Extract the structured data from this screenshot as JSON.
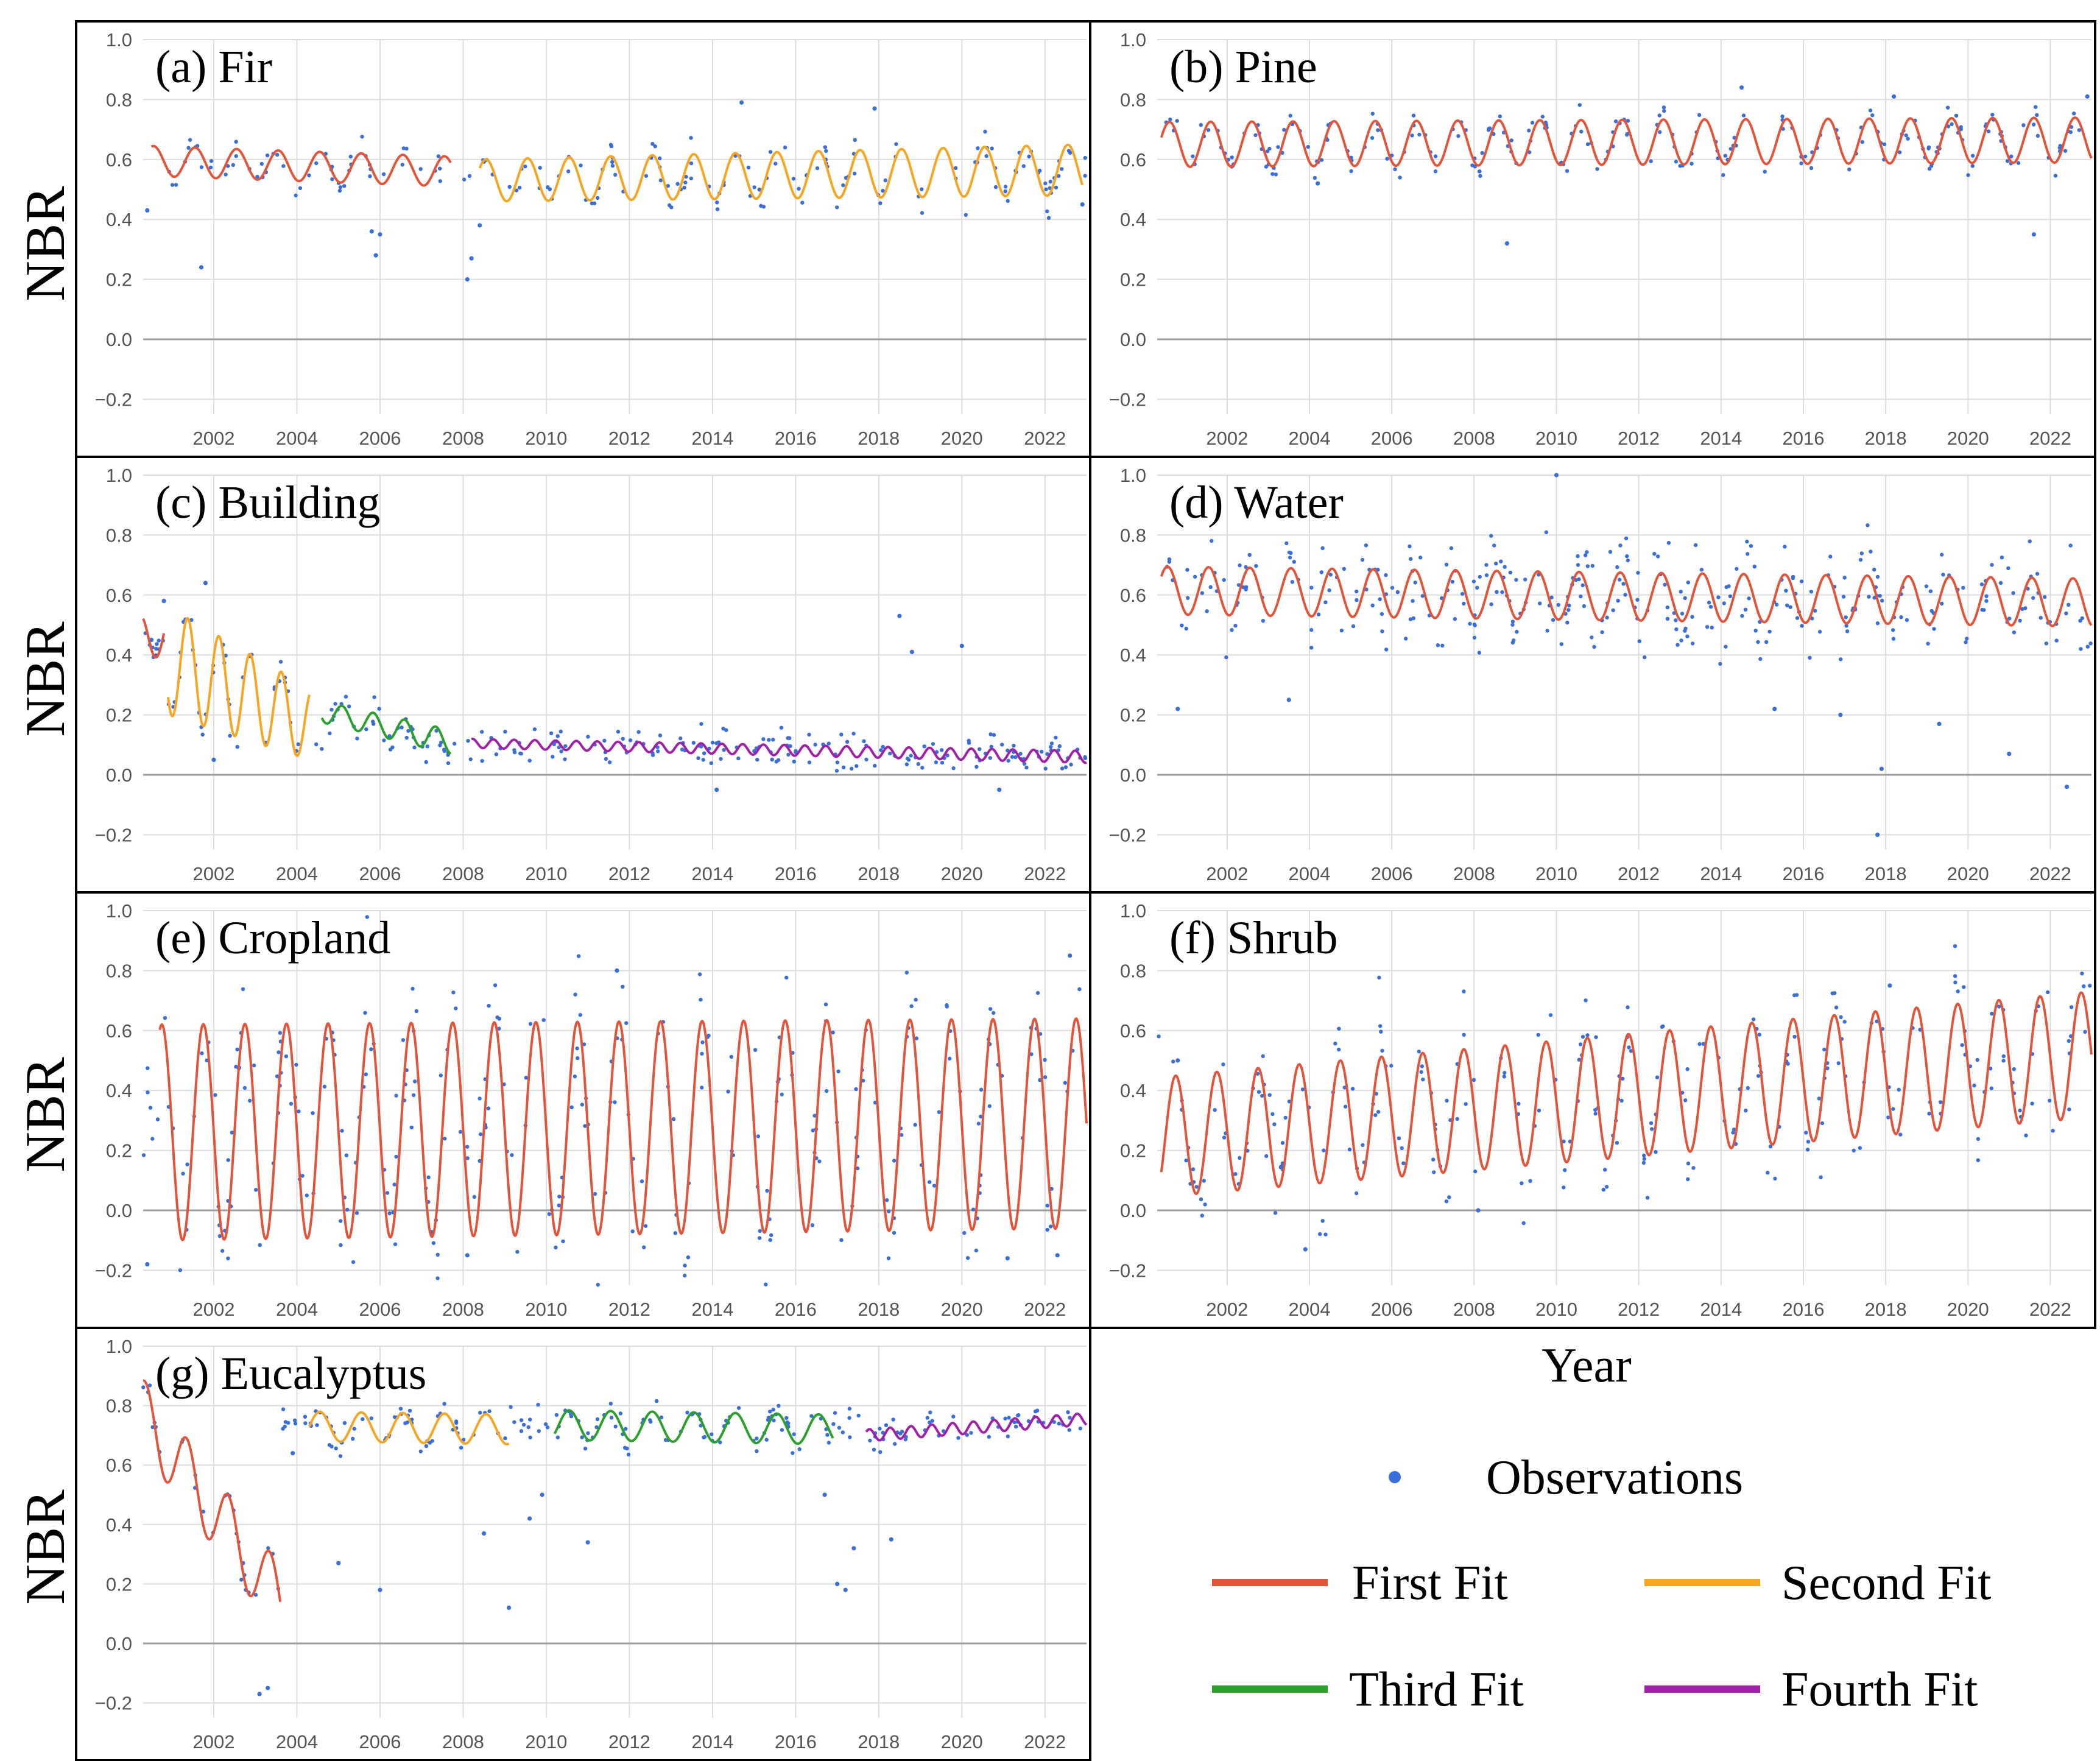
{
  "figure": {
    "xlabel": "Year",
    "ylabel": "NBR",
    "colors": {
      "observations": "#3b6fd8",
      "first_fit": "#e3553a",
      "second_fit": "#f6a623",
      "third_fit": "#2ca02c",
      "fourth_fit": "#a020a8",
      "zero_line": "#9e9e9e",
      "grid": "#dcdcdc"
    }
  },
  "legend": {
    "observations": "Observations",
    "first_fit": "First Fit",
    "second_fit": "Second Fit",
    "third_fit": "Third Fit",
    "fourth_fit": "Fourth Fit"
  },
  "chart_data": [
    {
      "id": "a",
      "type": "line",
      "title": "(a) Fir",
      "ylabel": "NBR",
      "xlabel": "Year",
      "xlim": [
        2000.3,
        2023.0
      ],
      "ylim": [
        -0.25,
        1.0
      ],
      "xticks": [
        "2002",
        "2004",
        "2006",
        "2008",
        "2010",
        "2012",
        "2014",
        "2016",
        "2018",
        "2020",
        "2022"
      ],
      "yticks": [
        "1.0",
        "0.8",
        "0.6",
        "0.4",
        "0.2",
        "0.0",
        "−0.2"
      ],
      "series": [
        {
          "name": "First Fit",
          "kind": "First Fit",
          "x_start": 2000.5,
          "x_end": 2007.7,
          "mean_start": 0.595,
          "mean_end": 0.56,
          "amp_start": 0.05,
          "amp_end": 0.05,
          "phase": 0.3
        },
        {
          "name": "Second Fit",
          "kind": "Second Fit",
          "x_start": 2008.4,
          "x_end": 2022.9,
          "mean_start": 0.53,
          "mean_end": 0.565,
          "amp_start": 0.07,
          "amp_end": 0.085,
          "phase": 0.3
        }
      ],
      "observations": {
        "mean": 0.57,
        "spread": 0.06,
        "count": 190,
        "outliers": [
          [
            2000.4,
            0.43
          ],
          [
            2001.7,
            0.24
          ],
          [
            2005.8,
            0.36
          ],
          [
            2005.9,
            0.28
          ],
          [
            2006.0,
            0.35
          ],
          [
            2008.1,
            0.2
          ],
          [
            2008.2,
            0.27
          ],
          [
            2008.4,
            0.38
          ],
          [
            2014.7,
            0.79
          ],
          [
            2017.9,
            0.77
          ],
          [
            2022.9,
            0.45
          ]
        ]
      }
    },
    {
      "id": "b",
      "type": "line",
      "title": "(b) Pine",
      "ylabel": "",
      "xlabel": "Year",
      "xlim": [
        2000.3,
        2023.0
      ],
      "ylim": [
        -0.25,
        1.0
      ],
      "xticks": [
        "2002",
        "2004",
        "2006",
        "2008",
        "2010",
        "2012",
        "2014",
        "2016",
        "2018",
        "2020",
        "2022"
      ],
      "yticks": [
        "1.0",
        "0.8",
        "0.6",
        "0.4",
        "0.2",
        "0.0",
        "−0.2"
      ],
      "series": [
        {
          "name": "First Fit",
          "kind": "First Fit",
          "x_start": 2000.4,
          "x_end": 2023.0,
          "mean_start": 0.65,
          "mean_end": 0.665,
          "amp_start": 0.075,
          "amp_end": 0.075,
          "phase": 0.35
        }
      ],
      "observations": {
        "mean": 0.66,
        "spread": 0.05,
        "count": 230,
        "outliers": [
          [
            2004.2,
            0.52
          ],
          [
            2008.8,
            0.32
          ],
          [
            2014.5,
            0.84
          ],
          [
            2018.2,
            0.81
          ],
          [
            2021.6,
            0.35
          ],
          [
            2022.9,
            0.81
          ]
        ]
      }
    },
    {
      "id": "c",
      "type": "line",
      "title": "(c) Building",
      "ylabel": "NBR",
      "xlabel": "Year",
      "xlim": [
        2000.3,
        2023.0
      ],
      "ylim": [
        -0.25,
        1.0
      ],
      "xticks": [
        "2002",
        "2004",
        "2006",
        "2008",
        "2010",
        "2012",
        "2014",
        "2016",
        "2018",
        "2020",
        "2022"
      ],
      "yticks": [
        "1.0",
        "0.8",
        "0.6",
        "0.4",
        "0.2",
        "0.0",
        "−0.2"
      ],
      "series": [
        {
          "name": "First Fit",
          "kind": "First Fit",
          "x_start": 2000.3,
          "x_end": 2000.8,
          "mean_start": 0.35,
          "mean_end": 0.52,
          "amp_start": 0.18,
          "amp_end": 0.05,
          "phase": 0.0,
          "period": 1.0
        },
        {
          "name": "Second Fit",
          "kind": "Second Fit",
          "x_start": 2000.9,
          "x_end": 2004.3,
          "mean_start": 0.38,
          "mean_end": 0.17,
          "amp_start": 0.18,
          "amp_end": 0.12,
          "phase": 0.25,
          "period": 0.75
        },
        {
          "name": "Third Fit",
          "kind": "Third Fit",
          "x_start": 2004.6,
          "x_end": 2007.7,
          "mean_start": 0.21,
          "mean_end": 0.11,
          "amp_start": 0.035,
          "amp_end": 0.04,
          "phase": 0.2,
          "period": 0.75
        },
        {
          "name": "Fourth Fit",
          "kind": "Fourth Fit",
          "x_start": 2008.2,
          "x_end": 2023.0,
          "mean_start": 0.105,
          "mean_end": 0.06,
          "amp_start": 0.015,
          "amp_end": 0.02,
          "phase": 0.2,
          "period": 0.5
        }
      ],
      "observations": {
        "mean": 0.1,
        "spread": 0.06,
        "count": 260,
        "outliers": [
          [
            2000.5,
            0.45
          ],
          [
            2000.8,
            0.58
          ],
          [
            2001.8,
            0.64
          ],
          [
            2002.0,
            0.05
          ],
          [
            2018.5,
            0.53
          ],
          [
            2018.8,
            0.41
          ],
          [
            2020.0,
            0.43
          ],
          [
            2014.1,
            -0.05
          ],
          [
            2020.9,
            -0.05
          ]
        ]
      }
    },
    {
      "id": "d",
      "type": "line",
      "title": "(d) Water",
      "ylabel": "",
      "xlabel": "Year",
      "xlim": [
        2000.3,
        2023.0
      ],
      "ylim": [
        -0.25,
        1.0
      ],
      "xticks": [
        "2002",
        "2004",
        "2006",
        "2008",
        "2010",
        "2012",
        "2014",
        "2016",
        "2018",
        "2020",
        "2022"
      ],
      "yticks": [
        "1.0",
        "0.8",
        "0.6",
        "0.4",
        "0.2",
        "0.0",
        "−0.2"
      ],
      "series": [
        {
          "name": "First Fit",
          "kind": "First Fit",
          "x_start": 2000.4,
          "x_end": 2023.0,
          "mean_start": 0.615,
          "mean_end": 0.575,
          "amp_start": 0.08,
          "amp_end": 0.08,
          "phase": 0.3
        }
      ],
      "observations": {
        "mean": 0.58,
        "spread": 0.16,
        "count": 330,
        "outliers": [
          [
            2000.8,
            0.22
          ],
          [
            2003.5,
            0.25
          ],
          [
            2010.0,
            1.0
          ],
          [
            2017.9,
            0.02
          ],
          [
            2017.8,
            -0.2
          ],
          [
            2022.4,
            -0.04
          ],
          [
            2019.3,
            0.17
          ],
          [
            2021.0,
            0.07
          ],
          [
            2016.9,
            0.2
          ],
          [
            2015.3,
            0.22
          ]
        ]
      }
    },
    {
      "id": "e",
      "type": "line",
      "title": "(e) Cropland",
      "ylabel": "NBR",
      "xlabel": "Year",
      "xlim": [
        2000.3,
        2023.0
      ],
      "ylim": [
        -0.25,
        1.0
      ],
      "xticks": [
        "2002",
        "2004",
        "2006",
        "2008",
        "2010",
        "2012",
        "2014",
        "2016",
        "2018",
        "2020",
        "2022"
      ],
      "yticks": [
        "1.0",
        "0.8",
        "0.6",
        "0.4",
        "0.2",
        "0.0",
        "−0.2"
      ],
      "series": [
        {
          "name": "First Fit",
          "kind": "First Fit",
          "x_start": 2000.7,
          "x_end": 2023.0,
          "mean_start": 0.26,
          "mean_end": 0.29,
          "amp_start": 0.36,
          "amp_end": 0.35,
          "phase": 0.5
        }
      ],
      "observations": {
        "mean": 0.3,
        "spread": 0.28,
        "count": 300,
        "outliers": [
          [
            2000.4,
            -0.18
          ],
          [
            2011.7,
            0.8
          ],
          [
            2022.6,
            0.85
          ],
          [
            2008.1,
            -0.15
          ],
          [
            2021.1,
            -0.16
          ],
          [
            2022.3,
            -0.15
          ]
        ]
      }
    },
    {
      "id": "f",
      "type": "line",
      "title": "(f) Shrub",
      "ylabel": "",
      "xlabel": "Year",
      "xlim": [
        2000.3,
        2023.0
      ],
      "ylim": [
        -0.25,
        1.0
      ],
      "xticks": [
        "2002",
        "2004",
        "2006",
        "2008",
        "2010",
        "2012",
        "2014",
        "2016",
        "2018",
        "2020",
        "2022"
      ],
      "yticks": [
        "1.0",
        "0.8",
        "0.6",
        "0.4",
        "0.2",
        "0.0",
        "−0.2"
      ],
      "series": [
        {
          "name": "First Fit",
          "kind": "First Fit",
          "x_start": 2000.4,
          "x_end": 2023.0,
          "mean_start": 0.245,
          "mean_end": 0.52,
          "amp_start": 0.2,
          "amp_end": 0.21,
          "phase": 0.5
        }
      ],
      "observations": {
        "mean": 0.4,
        "spread": 0.2,
        "count": 260,
        "outliers": [
          [
            2003.9,
            -0.13
          ],
          [
            2008.1,
            0.0
          ],
          [
            2018.1,
            0.75
          ],
          [
            2000.8,
            0.5
          ]
        ]
      }
    },
    {
      "id": "g",
      "type": "line",
      "title": "(g) Eucalyptus",
      "ylabel": "NBR",
      "xlabel": "Year",
      "xlim": [
        2000.3,
        2023.0
      ],
      "ylim": [
        -0.25,
        1.0
      ],
      "xticks": [
        "2002",
        "2004",
        "2006",
        "2008",
        "2010",
        "2012",
        "2014",
        "2016",
        "2018",
        "2020",
        "2022"
      ],
      "yticks": [
        "1.0",
        "0.8",
        "0.6",
        "0.4",
        "0.2",
        "0.0",
        "−0.2"
      ],
      "series": [
        {
          "name": "First Fit",
          "kind": "First Fit",
          "x_start": 2000.3,
          "x_end": 2003.6,
          "mean_start": 0.77,
          "mean_end": 0.14,
          "amp_start": 0.12,
          "amp_end": 0.12,
          "phase": 0.1
        },
        {
          "name": "Second Fit",
          "kind": "Second Fit",
          "x_start": 2004.3,
          "x_end": 2009.1,
          "mean_start": 0.73,
          "mean_end": 0.72,
          "amp_start": 0.05,
          "amp_end": 0.05,
          "phase": 0.3
        },
        {
          "name": "Third Fit",
          "kind": "Third Fit",
          "x_start": 2010.2,
          "x_end": 2016.9,
          "mean_start": 0.735,
          "mean_end": 0.72,
          "amp_start": 0.05,
          "amp_end": 0.05,
          "phase": 0.3
        },
        {
          "name": "Fourth Fit",
          "kind": "Fourth Fit",
          "x_start": 2017.7,
          "x_end": 2023.0,
          "mean_start": 0.7,
          "mean_end": 0.755,
          "amp_start": 0.02,
          "amp_end": 0.02,
          "phase": 0.3,
          "period": 0.5
        }
      ],
      "observations": {
        "mean": 0.74,
        "spread": 0.05,
        "count": 240,
        "outliers": [
          [
            2002.7,
            0.27
          ],
          [
            2003.1,
            -0.17
          ],
          [
            2003.3,
            -0.15
          ],
          [
            2003.9,
            0.64
          ],
          [
            2005.0,
            0.27
          ],
          [
            2006.0,
            0.18
          ],
          [
            2009.1,
            0.12
          ],
          [
            2009.6,
            0.42
          ],
          [
            2009.9,
            0.5
          ],
          [
            2011.0,
            0.34
          ],
          [
            2017.0,
            0.2
          ],
          [
            2017.2,
            0.18
          ],
          [
            2017.4,
            0.32
          ],
          [
            2018.3,
            0.35
          ],
          [
            2016.7,
            0.5
          ],
          [
            2008.5,
            0.37
          ]
        ]
      }
    }
  ]
}
